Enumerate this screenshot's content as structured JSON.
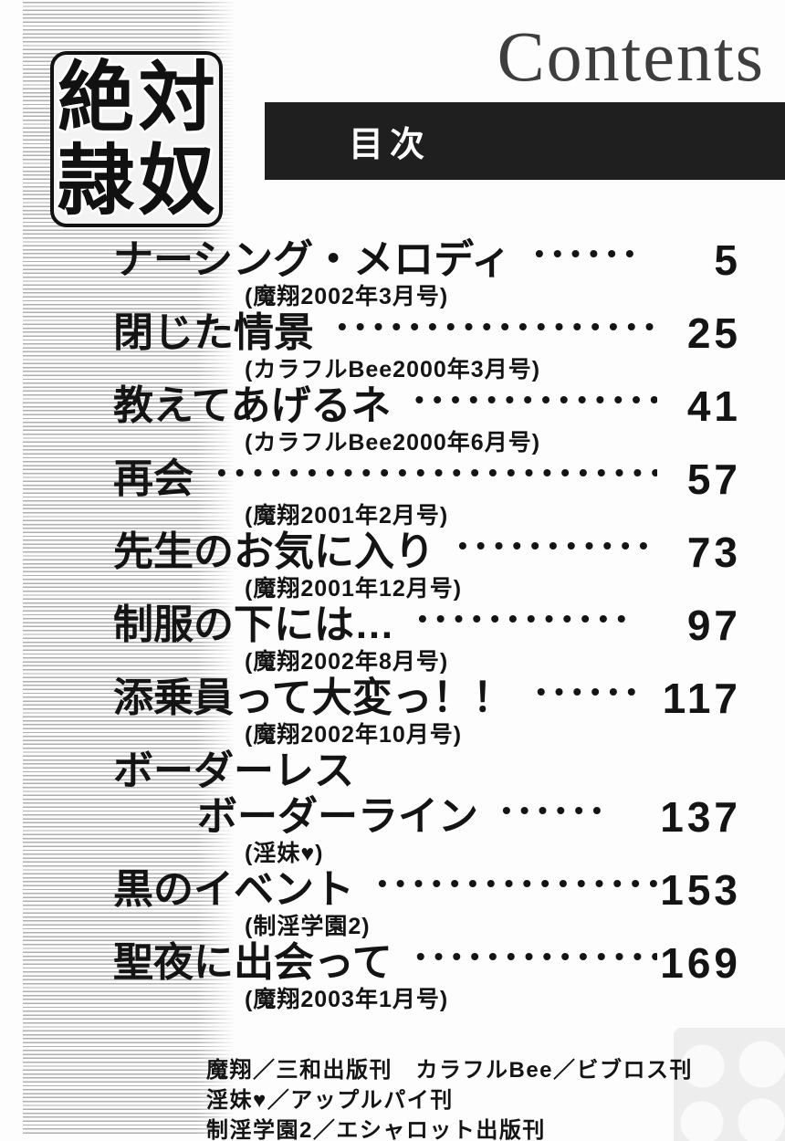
{
  "header": {
    "contents_title": "Contents",
    "toc_label": "目次",
    "logo_chars": [
      "絶",
      "対",
      "隷",
      "奴"
    ]
  },
  "toc": {
    "entries": [
      {
        "title": "ナーシング・メロディ",
        "dots": 6,
        "page": "5",
        "source": "(魔翔2002年3月号)"
      },
      {
        "title": "閉じた情景",
        "dots": 18,
        "page": "25",
        "source": "(カラフルBee2000年3月号)"
      },
      {
        "title": "教えてあげるネ",
        "dots": 14,
        "page": "41",
        "source": "(カラフルBee2000年6月号)"
      },
      {
        "title": "再会",
        "dots": 27,
        "page": "57",
        "source": "(魔翔2001年2月号)"
      },
      {
        "title": "先生のお気に入り",
        "dots": 12,
        "page": "73",
        "source": "(魔翔2001年12月号)"
      },
      {
        "title": "制服の下には…",
        "dots": 12,
        "page": "97",
        "source": "(魔翔2002年8月号)"
      },
      {
        "title": "添乗員って大変っ！！",
        "dots": 6,
        "page": "117",
        "source": "(魔翔2002年10月号)"
      },
      {
        "title": "ボーダーレス",
        "title_line2": "ボーダーライン",
        "dots": 6,
        "page": "137",
        "source": "(淫妹♥)"
      },
      {
        "title": "黒のイベント",
        "dots": 16,
        "page": "153",
        "source": "(制淫学園2)"
      },
      {
        "title": "聖夜に出会って",
        "dots": 14,
        "page": "169",
        "source": "(魔翔2003年1月号)"
      }
    ]
  },
  "footer": {
    "lines": [
      "魔翔／三和出版刊　カラフルBee／ビブロス刊",
      "淫妹♥／アップルパイ刊",
      "制淫学園2／エシャロット出版刊"
    ]
  },
  "colors": {
    "bar_background": "#1f1f1f",
    "bar_text": "#ffffff",
    "text": "#141414",
    "contents_title": "#3e3e3e",
    "stripe": "#9c9c9c"
  }
}
